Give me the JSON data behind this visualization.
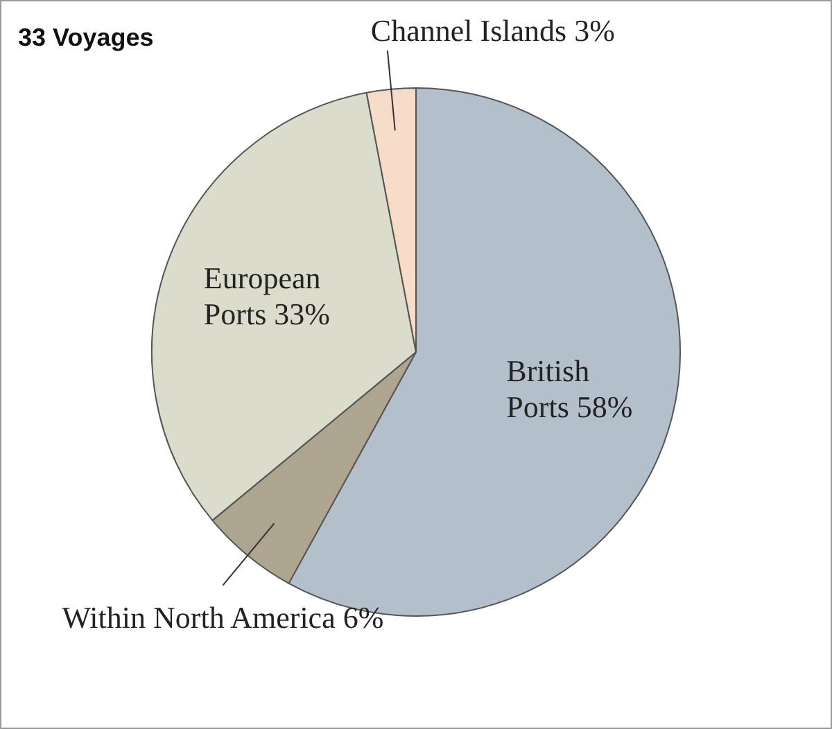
{
  "chart_data": {
    "type": "pie",
    "title": "33 Voyages",
    "categories": [
      "British Ports",
      "Within North America",
      "European Ports",
      "Channel Islands"
    ],
    "values": [
      58,
      6,
      33,
      3
    ],
    "colors": [
      "#b3c0cb",
      "#ada58f",
      "#dcdccc",
      "#f6dcc8"
    ],
    "value_labels": [
      "58%",
      "6%",
      "33%",
      "3%"
    ],
    "legend": false
  }
}
